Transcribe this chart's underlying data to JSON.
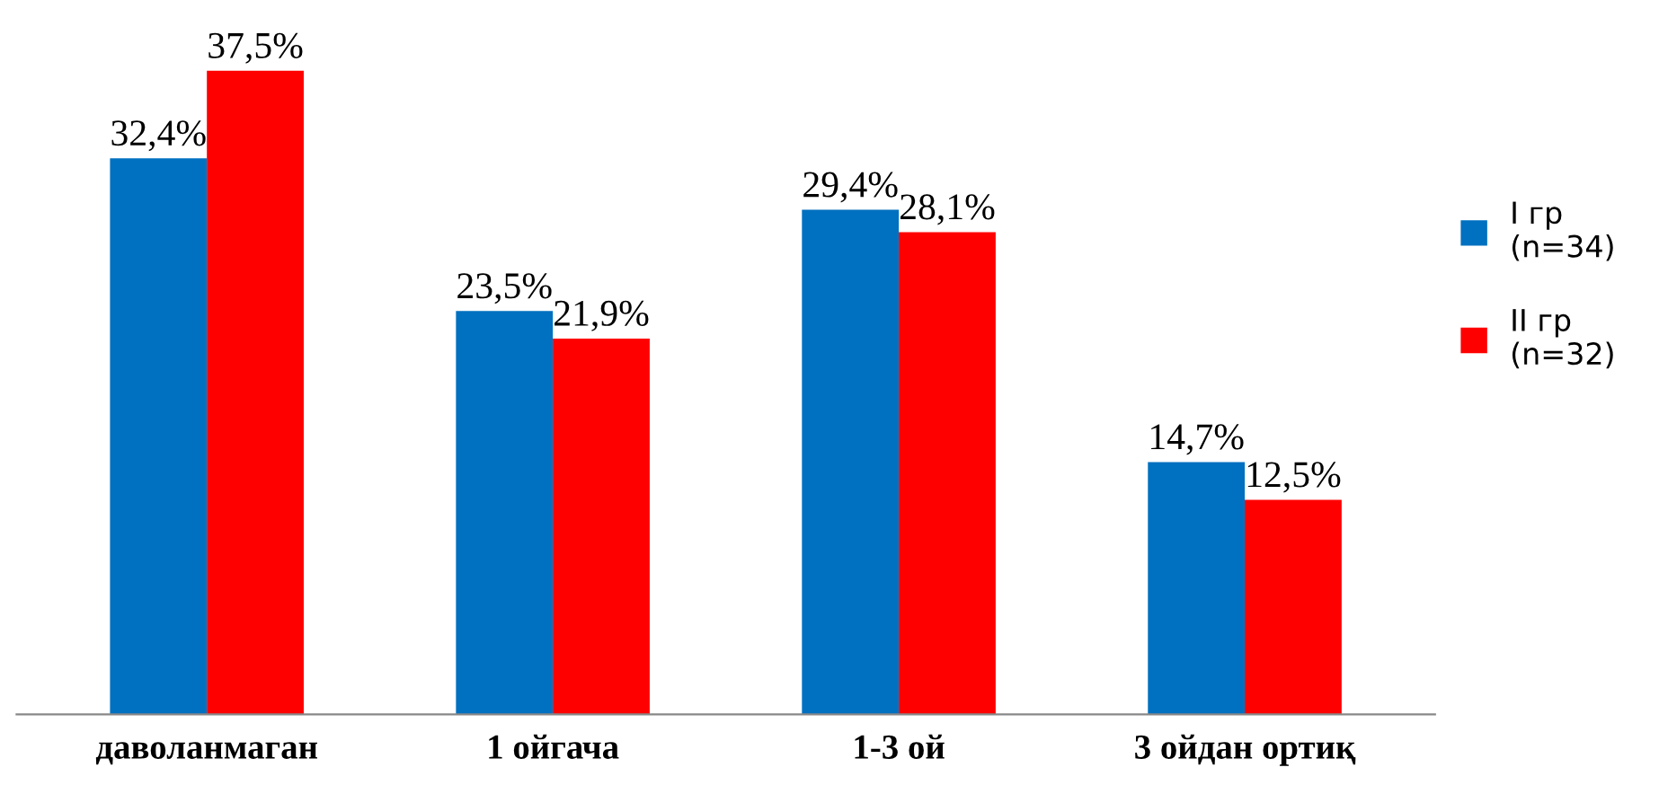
{
  "chart_data": {
    "type": "bar",
    "categories": [
      "даволанмаган",
      "1 ойгача",
      "1-3 ой",
      "3 ойдан ортиқ"
    ],
    "series": [
      {
        "name": "I гр\n(n=34)",
        "color": "#0070c0",
        "values": [
          32.4,
          23.5,
          29.4,
          14.7
        ],
        "value_labels": [
          "32,4%",
          "23,5%",
          "29,4%",
          "14,7%"
        ]
      },
      {
        "name": "II гр\n(n=32)",
        "color": "#ff0000",
        "values": [
          37.5,
          21.9,
          28.1,
          12.5
        ],
        "value_labels": [
          "37,5%",
          "21,9%",
          "28,1%",
          "12,5%"
        ]
      }
    ],
    "legend": "right"
  }
}
